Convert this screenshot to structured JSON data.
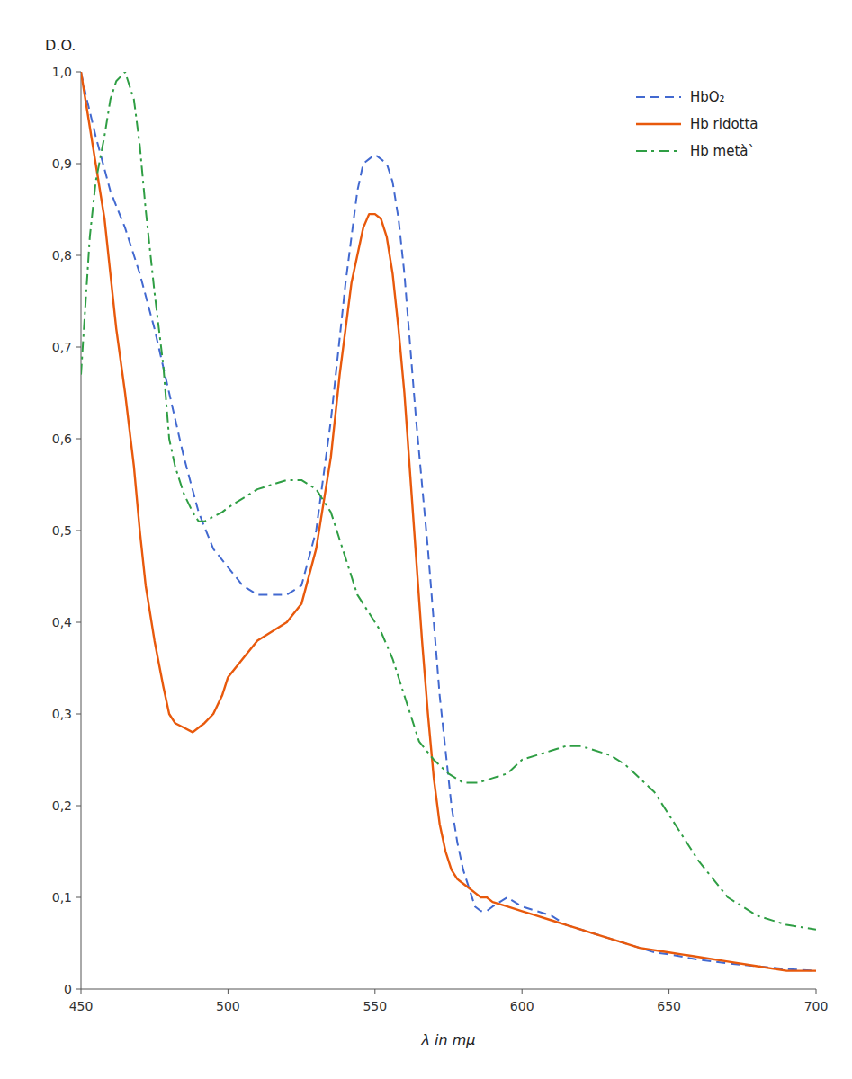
{
  "chart_data": {
    "type": "line",
    "x_label": "λ in mμ",
    "y_label": "D.O.",
    "xlim": [
      450,
      700
    ],
    "ylim": [
      0,
      1.0
    ],
    "xticks": [
      450,
      500,
      550,
      600,
      650,
      700
    ],
    "yticks": [
      0,
      {
        "value": 0.1,
        "label": "0,1"
      },
      {
        "value": 0.2,
        "label": "0,2"
      },
      {
        "value": 0.3,
        "label": "0,3"
      },
      {
        "value": 0.4,
        "label": "0,4"
      },
      {
        "value": 0.5,
        "label": "0,5"
      },
      {
        "value": 0.6,
        "label": "0,6"
      },
      {
        "value": 0.7,
        "label": "0,7"
      },
      {
        "value": 0.8,
        "label": "0,8"
      },
      {
        "value": 0.9,
        "label": "0,9"
      },
      {
        "value": 1.0,
        "label": "1,0"
      }
    ],
    "grid": false,
    "legend": "upper right",
    "series": [
      {
        "name": "HbO₂",
        "line_style": "dashed",
        "x": [
          450,
          452,
          455,
          460,
          465,
          470,
          475,
          480,
          485,
          490,
          495,
          500,
          505,
          510,
          515,
          520,
          525,
          530,
          535,
          540,
          542,
          544,
          546,
          548,
          550,
          552,
          554,
          556,
          558,
          560,
          562,
          564,
          566,
          568,
          570,
          572,
          574,
          576,
          578,
          580,
          582,
          584,
          586,
          588,
          590,
          595,
          600,
          605,
          610,
          615,
          620,
          625,
          630,
          635,
          640,
          645,
          650,
          660,
          670,
          680,
          690,
          700
        ],
        "values": [
          1.0,
          0.97,
          0.93,
          0.87,
          0.83,
          0.78,
          0.72,
          0.65,
          0.58,
          0.52,
          0.48,
          0.46,
          0.44,
          0.43,
          0.43,
          0.43,
          0.44,
          0.5,
          0.62,
          0.77,
          0.82,
          0.87,
          0.9,
          0.905,
          0.91,
          0.905,
          0.9,
          0.88,
          0.84,
          0.78,
          0.7,
          0.62,
          0.55,
          0.48,
          0.4,
          0.32,
          0.26,
          0.2,
          0.16,
          0.13,
          0.11,
          0.09,
          0.085,
          0.085,
          0.09,
          0.1,
          0.09,
          0.085,
          0.08,
          0.07,
          0.065,
          0.06,
          0.055,
          0.05,
          0.045,
          0.04,
          0.038,
          0.032,
          0.028,
          0.025,
          0.022,
          0.02
        ]
      },
      {
        "name": "Hb ridotta",
        "line_style": "solid",
        "x": [
          450,
          452,
          455,
          458,
          460,
          462,
          465,
          468,
          470,
          472,
          475,
          478,
          480,
          482,
          485,
          488,
          490,
          492,
          495,
          498,
          500,
          505,
          510,
          515,
          520,
          525,
          530,
          535,
          538,
          540,
          542,
          544,
          546,
          548,
          550,
          552,
          554,
          556,
          558,
          560,
          562,
          564,
          566,
          568,
          570,
          572,
          574,
          576,
          578,
          580,
          582,
          584,
          586,
          588,
          590,
          595,
          600,
          605,
          610,
          615,
          620,
          625,
          630,
          640,
          650,
          660,
          670,
          680,
          690,
          700
        ],
        "values": [
          1.0,
          0.96,
          0.9,
          0.84,
          0.78,
          0.72,
          0.65,
          0.57,
          0.5,
          0.44,
          0.38,
          0.33,
          0.3,
          0.29,
          0.285,
          0.28,
          0.285,
          0.29,
          0.3,
          0.32,
          0.34,
          0.36,
          0.38,
          0.39,
          0.4,
          0.42,
          0.48,
          0.58,
          0.67,
          0.72,
          0.77,
          0.8,
          0.83,
          0.845,
          0.845,
          0.84,
          0.82,
          0.78,
          0.72,
          0.65,
          0.56,
          0.47,
          0.38,
          0.3,
          0.23,
          0.18,
          0.15,
          0.13,
          0.12,
          0.115,
          0.11,
          0.105,
          0.1,
          0.1,
          0.095,
          0.09,
          0.085,
          0.08,
          0.075,
          0.07,
          0.065,
          0.06,
          0.055,
          0.045,
          0.04,
          0.035,
          0.03,
          0.025,
          0.02,
          0.02
        ]
      },
      {
        "name": "Hb metà`",
        "line_style": "dashdot",
        "x": [
          450,
          453,
          455,
          458,
          460,
          462,
          465,
          468,
          470,
          472,
          475,
          478,
          480,
          482,
          485,
          488,
          490,
          492,
          495,
          498,
          500,
          505,
          510,
          515,
          520,
          525,
          530,
          535,
          538,
          540,
          542,
          544,
          546,
          548,
          550,
          552,
          554,
          556,
          558,
          560,
          565,
          570,
          575,
          580,
          585,
          590,
          595,
          600,
          605,
          610,
          615,
          620,
          625,
          630,
          635,
          640,
          645,
          650,
          660,
          670,
          680,
          690,
          700
        ],
        "values": [
          0.67,
          0.82,
          0.88,
          0.93,
          0.97,
          0.99,
          1.0,
          0.97,
          0.92,
          0.85,
          0.76,
          0.68,
          0.6,
          0.57,
          0.54,
          0.52,
          0.51,
          0.51,
          0.515,
          0.52,
          0.525,
          0.535,
          0.545,
          0.55,
          0.555,
          0.555,
          0.545,
          0.52,
          0.49,
          0.47,
          0.45,
          0.43,
          0.42,
          0.41,
          0.4,
          0.39,
          0.375,
          0.36,
          0.34,
          0.32,
          0.27,
          0.25,
          0.235,
          0.225,
          0.225,
          0.23,
          0.235,
          0.25,
          0.255,
          0.26,
          0.265,
          0.265,
          0.26,
          0.255,
          0.245,
          0.23,
          0.215,
          0.19,
          0.14,
          0.1,
          0.08,
          0.07,
          0.065
        ]
      }
    ]
  }
}
